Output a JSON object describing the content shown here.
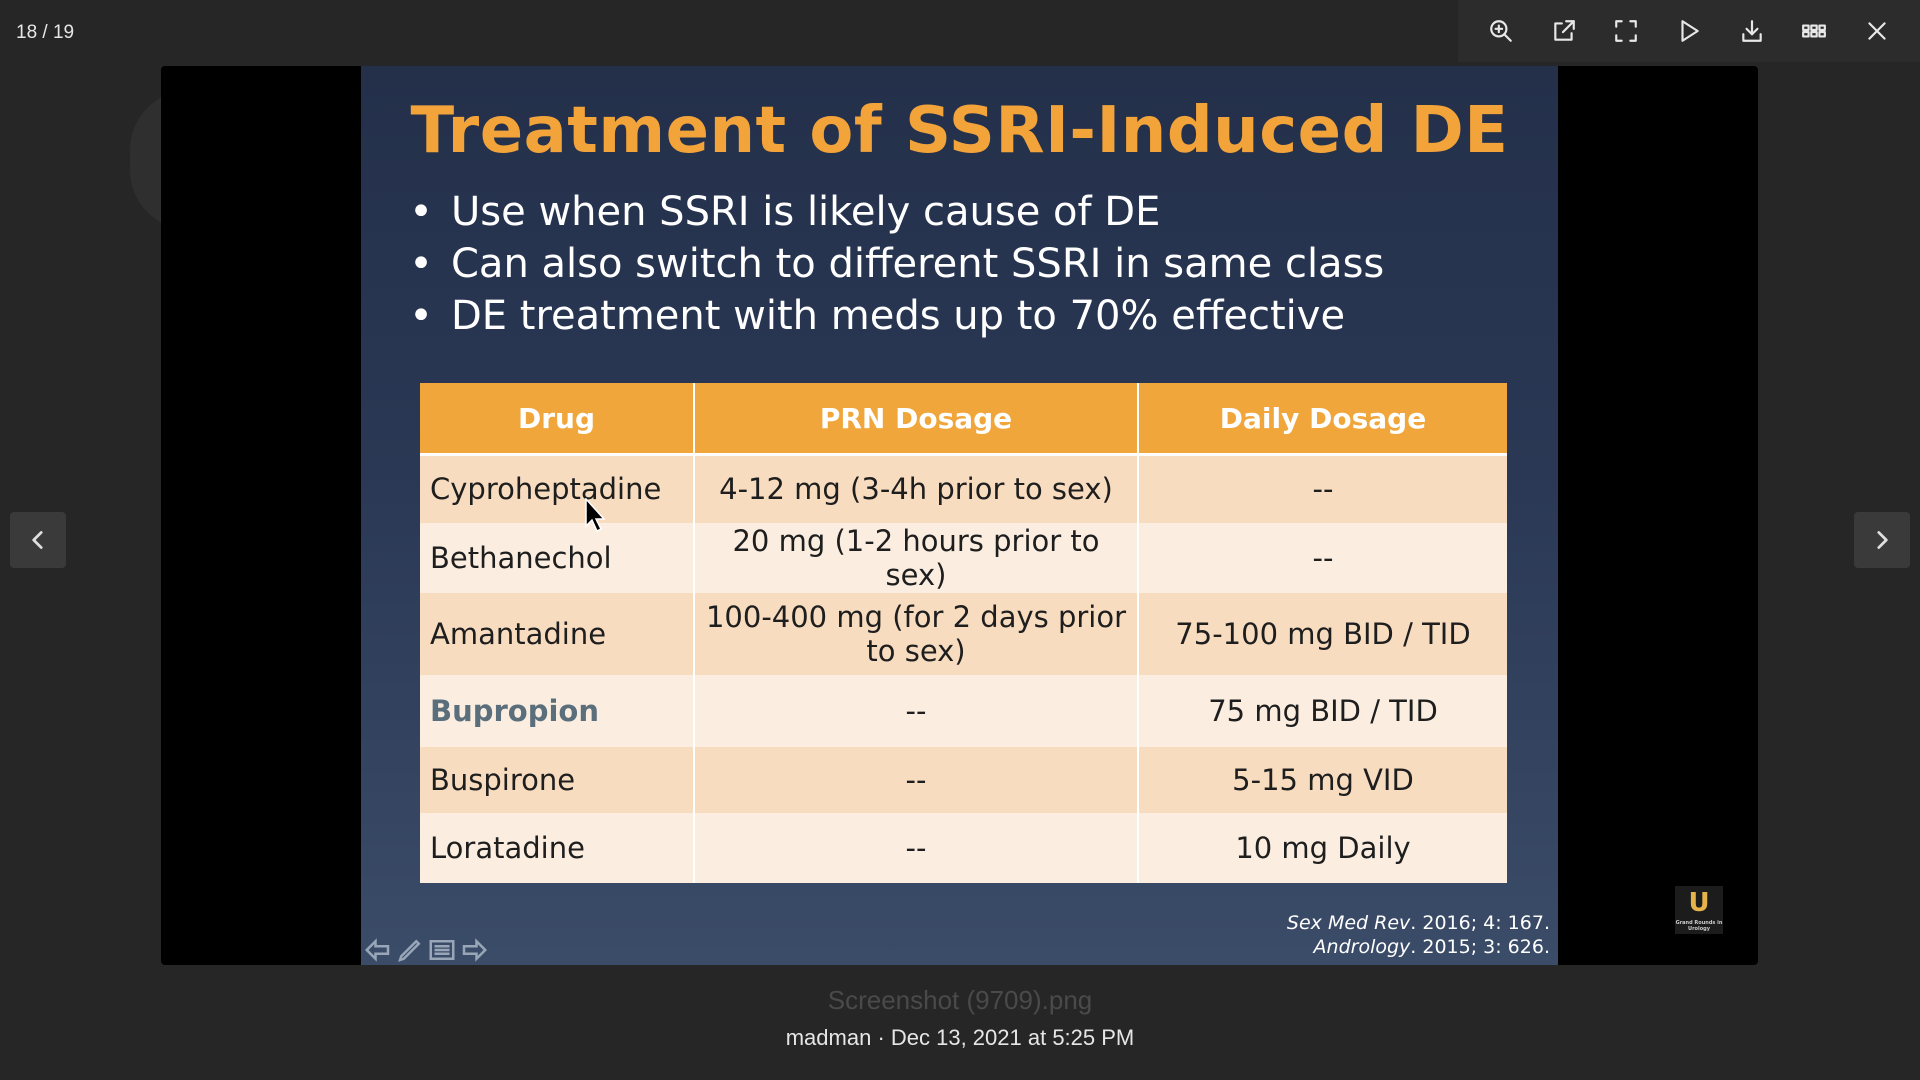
{
  "viewer": {
    "counter": "18 / 19",
    "filename": "Screenshot (9709).png",
    "meta": "madman · Dec 13, 2021 at 5:25 PM"
  },
  "toolbar": [
    {
      "name": "zoom-in-icon",
      "label": "Zoom in"
    },
    {
      "name": "open-external-icon",
      "label": "Open externally"
    },
    {
      "name": "fullscreen-icon",
      "label": "Fullscreen"
    },
    {
      "name": "play-icon",
      "label": "Slideshow"
    },
    {
      "name": "download-icon",
      "label": "Download"
    },
    {
      "name": "grid-icon",
      "label": "Grid view"
    },
    {
      "name": "close-icon",
      "label": "Close"
    }
  ],
  "slide": {
    "title": "Treatment of SSRI-Induced DE",
    "bullets": [
      "Use when SSRI is likely cause of DE",
      "Can also switch to different SSRI in same class",
      "DE treatment with meds up to 70% effective"
    ],
    "table": {
      "headers": [
        "Drug",
        "PRN Dosage",
        "Daily Dosage"
      ],
      "rows": [
        [
          "Cyproheptadine",
          "4-12 mg (3-4h prior to sex)",
          "--"
        ],
        [
          "Bethanechol",
          "20 mg (1-2 hours prior to sex)",
          "--"
        ],
        [
          "Amantadine",
          "100-400 mg (for 2 days prior to sex)",
          "75-100 mg BID / TID"
        ],
        [
          "Bupropion",
          "--",
          "75 mg BID / TID"
        ],
        [
          "Buspirone",
          "--",
          "5-15 mg VID"
        ],
        [
          "Loratadine",
          "--",
          "10 mg Daily"
        ]
      ]
    },
    "references": [
      {
        "source": "Sex Med Rev",
        "rest": ". 2016; 4: 167."
      },
      {
        "source": "Andrology",
        "rest": ". 2015; 3: 626."
      }
    ],
    "logo_letter": "U",
    "logo_text": "Grand Rounds in Urology"
  },
  "colors": {
    "accent": "#f2a33a",
    "header": "#f0a63a",
    "row_odd": "#f8dcc0",
    "row_even": "#fbeee0",
    "highlight_text": "#5a6e7c"
  }
}
